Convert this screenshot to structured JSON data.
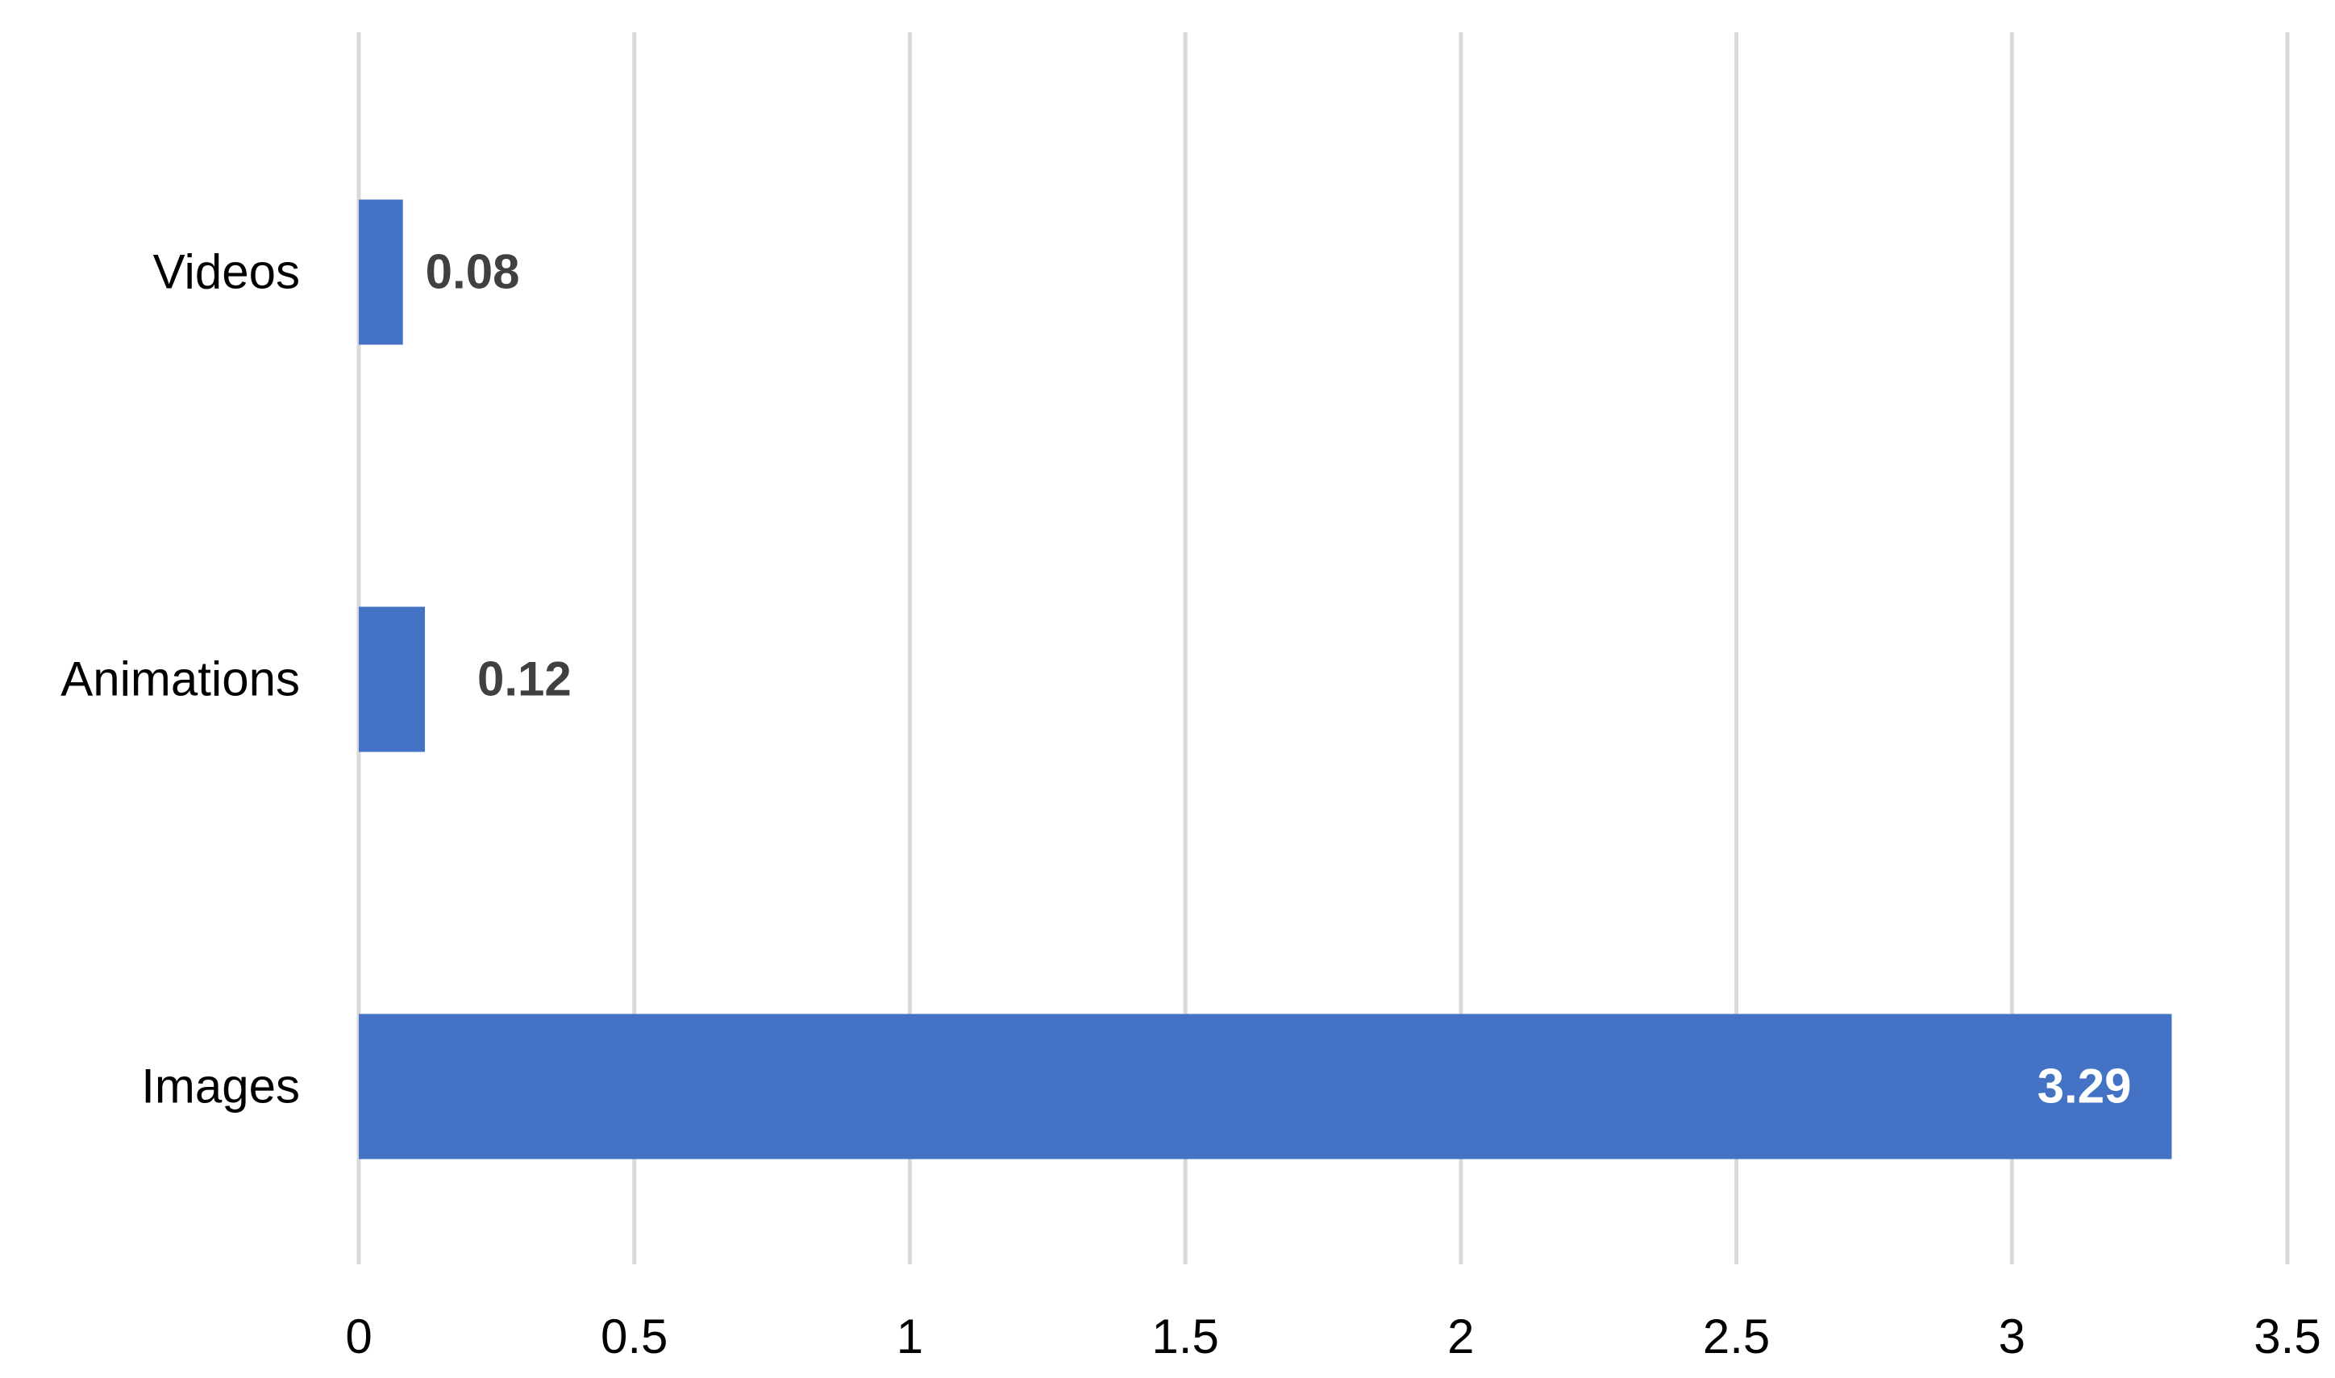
{
  "chart_data": {
    "type": "bar",
    "orientation": "horizontal",
    "categories": [
      "Videos",
      "Animations",
      "Images"
    ],
    "values": [
      0.08,
      0.12,
      3.29
    ],
    "data_labels": [
      "0.08",
      "0.12",
      "3.29"
    ],
    "title": "",
    "xlabel": "",
    "ylabel": "",
    "xlim": [
      0,
      3.5
    ],
    "x_ticks": [
      0,
      0.5,
      1,
      1.5,
      2,
      2.5,
      3,
      3.5
    ],
    "x_tick_labels": [
      "0",
      "0.5",
      "1",
      "1.5",
      "2",
      "2.5",
      "3",
      "3.5"
    ],
    "grid": "vertical",
    "legend": "none",
    "colors": {
      "bar": "#4472c4",
      "grid": "#d9d9d9",
      "label": "#404040",
      "inside_label": "#ffffff"
    }
  }
}
